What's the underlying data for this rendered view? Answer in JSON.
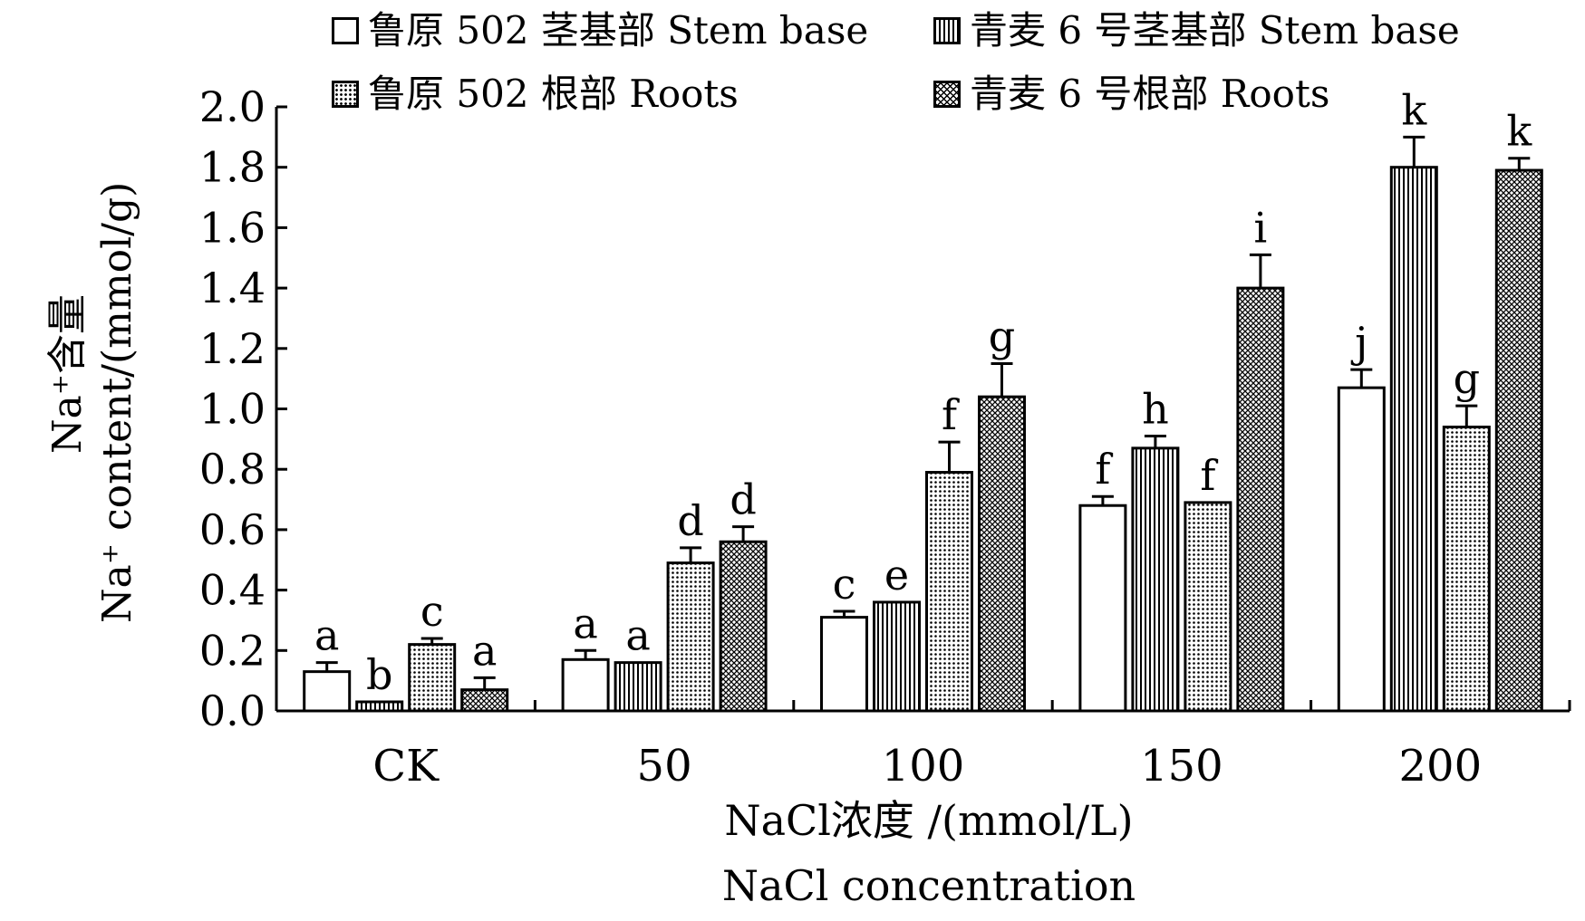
{
  "chart_data": {
    "type": "bar",
    "categories": [
      "CK",
      "50",
      "100",
      "150",
      "200"
    ],
    "series": [
      {
        "name": "鲁原 502 茎基部 Stem base",
        "values": [
          0.13,
          0.17,
          0.31,
          0.68,
          1.07
        ],
        "errors": [
          0.03,
          0.03,
          0.02,
          0.03,
          0.06
        ],
        "letters": [
          "a",
          "a",
          "c",
          "f",
          "j"
        ],
        "pattern": "white"
      },
      {
        "name": "青麦 6 号茎基部 Stem base",
        "values": [
          0.03,
          0.16,
          0.36,
          0.87,
          1.8
        ],
        "errors": [
          0.0,
          0.0,
          0.0,
          0.04,
          0.1
        ],
        "letters": [
          "b",
          "a",
          "e",
          "h",
          "k"
        ],
        "pattern": "vertical-stripes"
      },
      {
        "name": "鲁原 502 根部 Roots",
        "values": [
          0.22,
          0.49,
          0.79,
          0.69,
          0.94
        ],
        "errors": [
          0.02,
          0.05,
          0.1,
          0.0,
          0.07
        ],
        "letters": [
          "c",
          "d",
          "f",
          "f",
          "g"
        ],
        "pattern": "dots"
      },
      {
        "name": "青麦 6 号根部 Roots",
        "values": [
          0.07,
          0.56,
          1.04,
          1.4,
          1.79
        ],
        "errors": [
          0.04,
          0.05,
          0.11,
          0.11,
          0.04
        ],
        "letters": [
          "a",
          "d",
          "g",
          "i",
          "k"
        ],
        "pattern": "crosshatch"
      }
    ],
    "ylim": [
      0,
      2.0
    ],
    "yticks": [
      "0.0",
      "0.2",
      "0.4",
      "0.6",
      "0.8",
      "1.0",
      "1.2",
      "1.4",
      "1.6",
      "1.8",
      "2.0"
    ],
    "xlabel_cn": "NaCl浓度 /(mmol/L)",
    "xlabel_en": "NaCl concentration",
    "ylabel_cn": "Na⁺含量",
    "ylabel_en": "Na⁺ content/(mmol/g)",
    "legend_position": "top",
    "grid": false
  }
}
